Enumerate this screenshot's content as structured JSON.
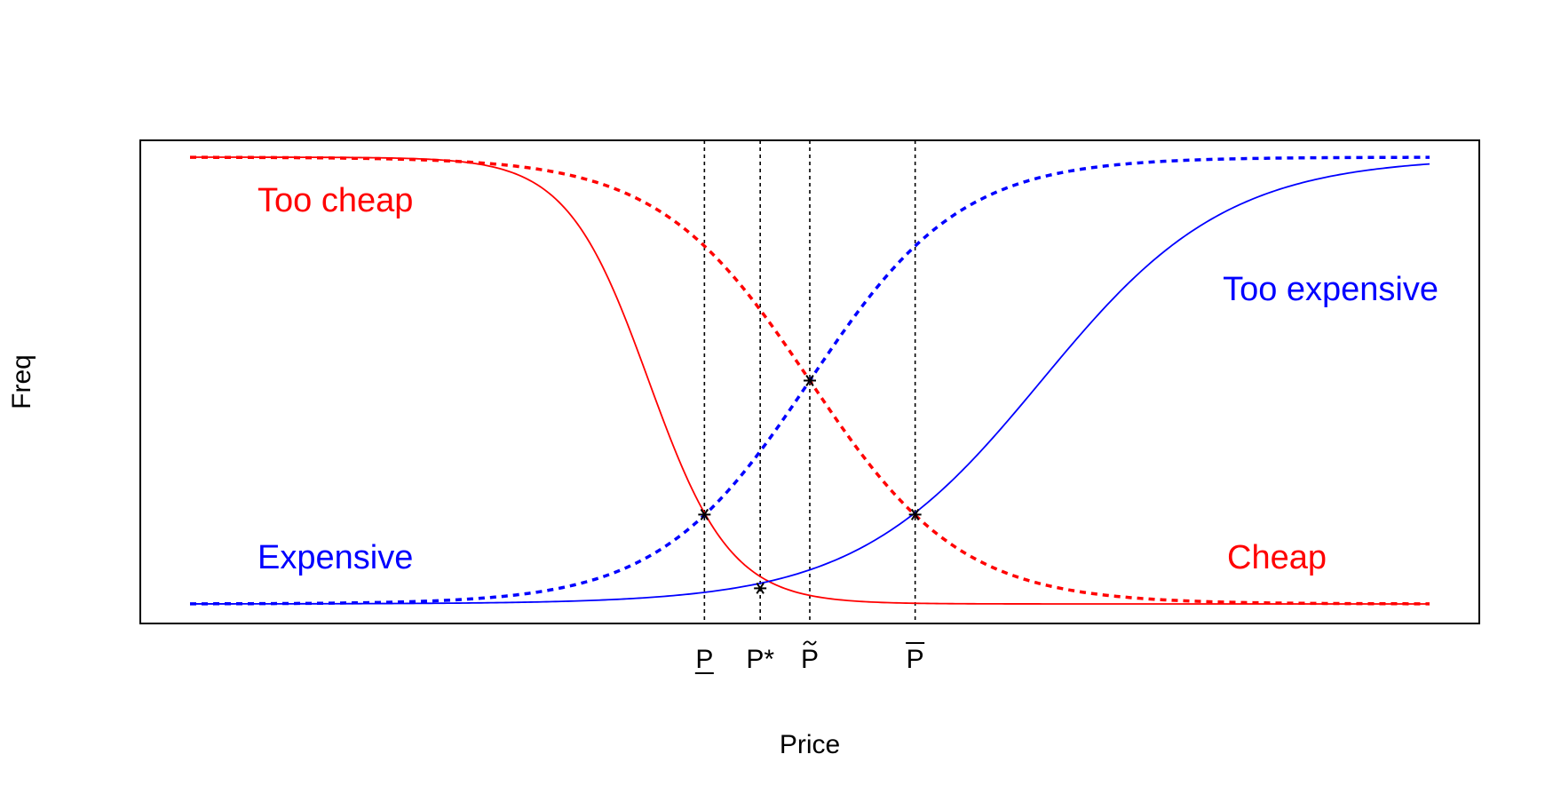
{
  "chart_data": {
    "type": "line",
    "xlabel": "Price",
    "ylabel": "Freq",
    "xlim": [
      0,
      100
    ],
    "ylim": [
      0,
      1
    ],
    "grid": false,
    "x_ticks": [
      {
        "label": "P",
        "x": 41.5,
        "accent": "underline"
      },
      {
        "label": "P*",
        "x": 46.0,
        "accent": "none"
      },
      {
        "label": "P",
        "x": 50.0,
        "accent": "tilde"
      },
      {
        "label": "P",
        "x": 58.5,
        "accent": "overline"
      }
    ],
    "series": [
      {
        "name": "Too cheap",
        "color": "#ff0000",
        "style": "solid",
        "direction": "decreasing",
        "center": 37.0,
        "scale": 3.3,
        "label_position": "top-left"
      },
      {
        "name": "Cheap",
        "color": "#ff0000",
        "style": "dashed",
        "direction": "decreasing",
        "center": 50.0,
        "scale": 6.1,
        "label_position": "bottom-right"
      },
      {
        "name": "Expensive",
        "color": "#0000ff",
        "style": "dashed",
        "direction": "increasing",
        "center": 50.0,
        "scale": 6.1,
        "label_position": "bottom-left"
      },
      {
        "name": "Too expensive",
        "color": "#0000ff",
        "style": "solid",
        "direction": "increasing",
        "center": 68.7,
        "scale": 7.5,
        "label_position": "top-right"
      }
    ],
    "intersections": [
      {
        "x": 41.5,
        "y": 0.2
      },
      {
        "x": 46.0,
        "y": 0.035
      },
      {
        "x": 50.0,
        "y": 0.5
      },
      {
        "x": 58.5,
        "y": 0.2
      }
    ],
    "marker": "asterisk"
  }
}
